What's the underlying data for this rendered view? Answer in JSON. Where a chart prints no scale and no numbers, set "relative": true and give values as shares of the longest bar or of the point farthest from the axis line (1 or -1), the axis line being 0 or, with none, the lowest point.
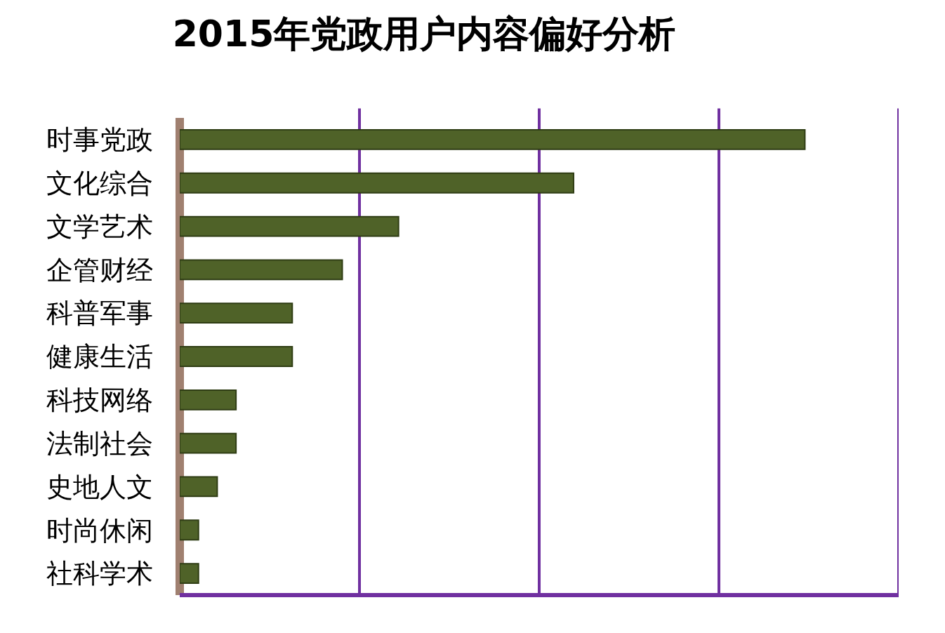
{
  "chart_data": {
    "type": "bar",
    "orientation": "horizontal",
    "relative": true,
    "title": "2015年党政用户内容偏好分析",
    "categories": [
      "时事党政",
      "文化综合",
      "文学艺术",
      "企管财经",
      "科普军事",
      "健康生活",
      "科技网络",
      "法制社会",
      "史地人文",
      "时尚休闲",
      "社科学术"
    ],
    "values": [
      1,
      0.63,
      0.35,
      0.26,
      0.18,
      0.18,
      0.09,
      0.09,
      0.06,
      0.03,
      0.03
    ],
    "color": "#4f6228",
    "ref_lines": [
      {
        "axis": "x",
        "value": 0.2875,
        "label": null,
        "color": "#7030a0"
      },
      {
        "axis": "x",
        "value": 0.575,
        "label": null,
        "color": "#7030a0"
      },
      {
        "axis": "x",
        "value": 0.8625,
        "label": null,
        "color": "#7030a0"
      },
      {
        "axis": "x",
        "value": 1.15,
        "label": null,
        "color": "#7030a0"
      }
    ]
  }
}
